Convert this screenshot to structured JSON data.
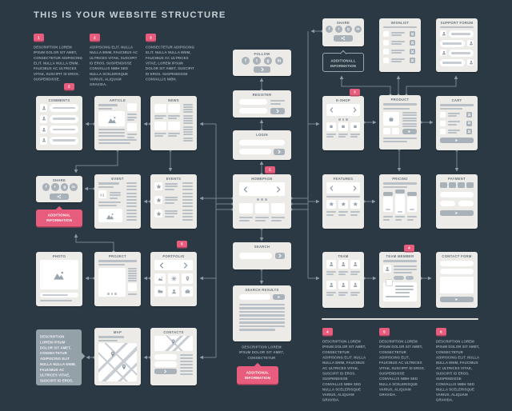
{
  "title": "THIS IS YOUR WEBSITE STRUCTURE",
  "colors": {
    "background": "#2b3944",
    "card": "#ecebe8",
    "accent": "#e85d7e",
    "line": "#76848f",
    "element_gray": "#b9c0c6"
  },
  "top_descriptions": [
    {
      "num": "1",
      "text": "DESCRIPTION LOREM IPSUM DOLOR SIT AMET, CONSECTETUR ADIPISCING ELIT. NULLA NULLA ENIM, FAUCIBUS AC ULTRICES VITAE, SUSCIPIT ID EROS. SUSPENDISSE."
    },
    {
      "num": "2",
      "text": "ADIPISCING ELIT. NULLA NULLA ENIM, FAUCIBUS AC ULTRICES VITAE, SUSCIPIT ID EROS. SUSPENDISSE CONVALLIS NIBH SED NULLA SCELERISQUE VARIUS, ALIQUAM GRAVIDA."
    },
    {
      "num": "3",
      "text": "CONSECTETUR ADIPISCING ELIT. NULLA NULLA ENIM, FAUCIBUS AC ULTRICES VITAE, LOREM IPSUM DOLOR SIT AMET, SUSCIPIT ID EROS. SUSPENDISSE CONVALLIS NIBH."
    }
  ],
  "bottom_descriptions": [
    {
      "num": "4",
      "text": "DESCRIPTION LOREM IPSUM DOLOR SIT AMET, CONSECTETUR ADIPISCING ELIT. NULLA NULLA ENIM, FAUCIBUS AC ULTRICES VITAE, SUSCIPIT ID EROS. SUSPENDISSE CONVALLIS NIBH SED NULLA SCELERISQUE VARIUS, ALIQUAM GRAVIDA."
    },
    {
      "num": "5",
      "text": "DESCRIPTION LOREM IPSUM DOLOR SIT AMET, CONSECTETUR ADIPISCING ELIT, FAUCIBUS AC ULTRICES VITAE, SUSCIPIT ID EROS. SUSPENDISSE CONVALLIS NIBH SED NULLA SCELERISQUE VARIUS, ALIQUAM GRAVIDA."
    },
    {
      "num": "6",
      "text": "DESCRIPTION LOREM IPSUM DOLOR SIT AMET, CONSECTETUR ADIPISCING ELIT. NULLA NULLA ENIM, FAUCIBUS AC ULTRICES VITAE, SUSCIPIT ID EROS. SUSPENDISSE CONVALLIS NIBH SED NULLA SCELERISQUE VARIUS, ALIQUAM GRAVIDA."
    }
  ],
  "search_results_note": "DESCRIPTION LOREM IPSUM DOLOR SIT AMET, CONSECTETUR",
  "description_bubble": "DESCRIPTION LOREM IPSUM DOLOR SIT AMET, CONSECTETUR ADIPISCING ELIT NULLA NULLA ENIM, FAUCIBUS AC ULTRICES VITAE, SUSCIPIT ID EROS.",
  "callouts": {
    "share_left": "ADDITIONAL INFORMATION",
    "share_right": "ADDITIONALL INFORMATION",
    "search_bottom": "ADDITIONAL INFORMATION"
  },
  "cards": [
    {
      "id": "comments",
      "label": "COMMENTS",
      "badge": {
        "num": "2"
      }
    },
    {
      "id": "article",
      "label": "ARTICLE"
    },
    {
      "id": "news",
      "label": "NEWS"
    },
    {
      "id": "share-left",
      "label": "SHARE",
      "icons": [
        "facebook-icon",
        "twitter-icon",
        "google-plus-icon",
        "linkedin-icon",
        "share-icon"
      ]
    },
    {
      "id": "event",
      "label": "EVENT",
      "date_text": "01"
    },
    {
      "id": "events",
      "label": "EVENTS",
      "icons": [
        "star-icon"
      ]
    },
    {
      "id": "photo",
      "label": "PHOTO",
      "icons": [
        "image-icon"
      ]
    },
    {
      "id": "project",
      "label": "PROJECT"
    },
    {
      "id": "portfolio",
      "label": "PORTFOLIO",
      "badge": {
        "num": "5"
      },
      "icons": [
        "image-icon",
        "gear-icon",
        "map-pin-icon",
        "folder-icon",
        "user-icon",
        "briefcase-icon"
      ]
    },
    {
      "id": "map",
      "label": "MAP",
      "icons": [
        "map-pin-icon"
      ]
    },
    {
      "id": "contacts",
      "label": "CONTACTS",
      "icons": [
        "map-pin-icon"
      ]
    },
    {
      "id": "follow",
      "label": "FOLLOW",
      "icons": [
        "facebook-icon",
        "twitter-icon",
        "google-plus-icon",
        "linkedin-icon"
      ]
    },
    {
      "id": "register",
      "label": "REGISTER"
    },
    {
      "id": "login",
      "label": "LOGIN"
    },
    {
      "id": "homepage",
      "label": "HOMEPAGE",
      "badge": {
        "num": "1"
      }
    },
    {
      "id": "search",
      "label": "SEARCH"
    },
    {
      "id": "search-results",
      "label": "SEARCH RESULTS"
    },
    {
      "id": "share-right",
      "label": "SHARE",
      "icons": [
        "facebook-icon",
        "twitter-icon",
        "google-plus-icon",
        "linkedin-icon",
        "share-icon"
      ]
    },
    {
      "id": "wishlist",
      "label": "WISHLIST",
      "icons": [
        "x-icon"
      ]
    },
    {
      "id": "support-forum",
      "label": "SUPPORT FORUM",
      "icons": [
        "user-icon"
      ]
    },
    {
      "id": "eshop",
      "label": "E-SHOP",
      "badge": {
        "num": "3"
      },
      "icons": [
        "basket-icon"
      ]
    },
    {
      "id": "product",
      "label": "PRODUCT",
      "icons": [
        "basket-icon"
      ]
    },
    {
      "id": "cart",
      "label": "CART",
      "icons": [
        "x-icon"
      ]
    },
    {
      "id": "features",
      "label": "FEATURES",
      "icons": [
        "star-icon"
      ]
    },
    {
      "id": "pricing",
      "label": "PRICING"
    },
    {
      "id": "payment",
      "label": "PAYMENT",
      "icons": [
        "credit-card-icon"
      ]
    },
    {
      "id": "team",
      "label": "TEAM",
      "icons": [
        "user-icon"
      ]
    },
    {
      "id": "team-member",
      "label": "TEAM MEMBER",
      "badge": {
        "num": "4"
      },
      "icons": [
        "user-icon"
      ]
    },
    {
      "id": "contact-form",
      "label": "CONTACT FORM"
    }
  ]
}
